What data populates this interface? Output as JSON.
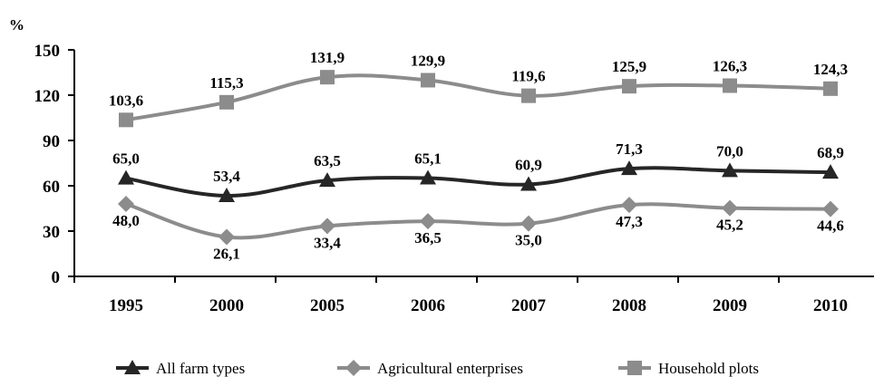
{
  "chart_data": {
    "type": "line",
    "y_unit": "%",
    "categories": [
      "1995",
      "2000",
      "2005",
      "2006",
      "2007",
      "2008",
      "2009",
      "2010"
    ],
    "ylim": [
      0,
      150
    ],
    "yticks": [
      0,
      30,
      60,
      90,
      120,
      150
    ],
    "grid": false,
    "legend_position": "bottom",
    "series": [
      {
        "name": "All farm types",
        "marker": "triangle",
        "color": "#262626",
        "values": [
          65.0,
          53.4,
          63.5,
          65.1,
          60.9,
          71.3,
          70.0,
          68.9
        ],
        "labels": [
          "65,0",
          "53,4",
          "63,5",
          "65,1",
          "60,9",
          "71,3",
          "70,0",
          "68,9"
        ]
      },
      {
        "name": "Agricultural enterprises",
        "marker": "diamond",
        "color": "#8c8c8c",
        "values": [
          48.0,
          26.1,
          33.4,
          36.5,
          35.0,
          47.3,
          45.2,
          44.6
        ],
        "labels": [
          "48,0",
          "26,1",
          "33,4",
          "36,5",
          "35,0",
          "47,3",
          "45,2",
          "44,6"
        ]
      },
      {
        "name": "Household plots",
        "marker": "square",
        "color": "#8c8c8c",
        "values": [
          103.6,
          115.3,
          131.9,
          129.9,
          119.6,
          125.9,
          126.3,
          124.3
        ],
        "labels": [
          "103,6",
          "115,3",
          "131,9",
          "129,9",
          "119,6",
          "125,9",
          "126,3",
          "124,3"
        ]
      }
    ]
  }
}
